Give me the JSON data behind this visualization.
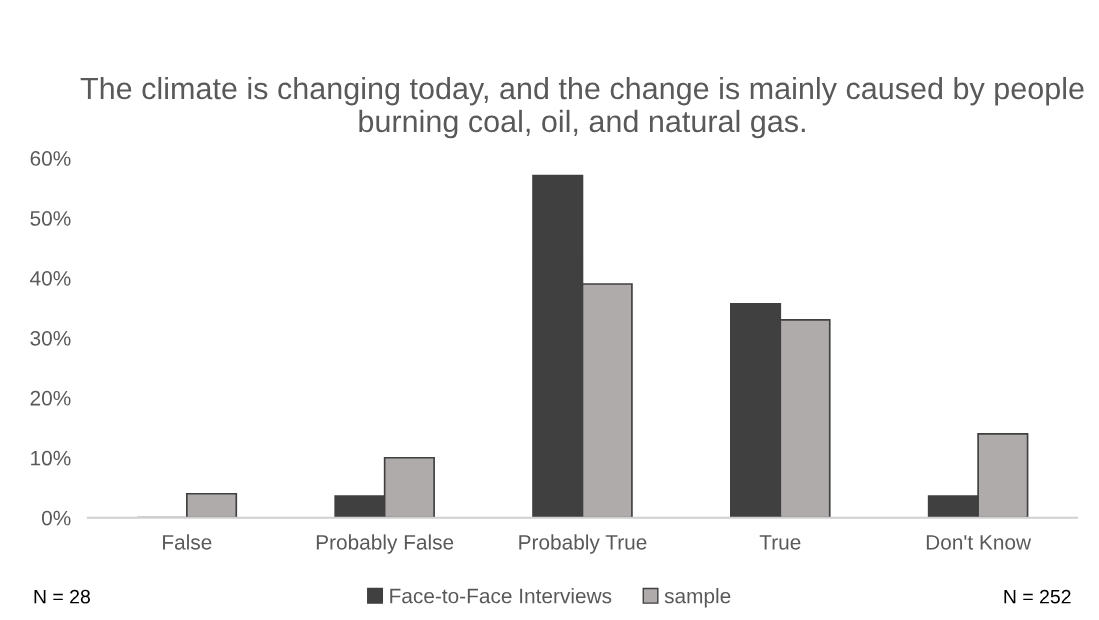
{
  "chart_data": {
    "type": "bar",
    "title": "The climate is changing today, and the change is mainly caused by people burning coal, oil, and natural gas.",
    "categories": [
      "False",
      "Probably False",
      "Probably True",
      "True",
      "Don't Know"
    ],
    "series": [
      {
        "name": "Face-to-Face Interviews",
        "color": "#404040",
        "values": [
          0,
          3.6,
          57.1,
          35.7,
          3.6
        ]
      },
      {
        "name": "sample",
        "color": "#afabab",
        "values": [
          4,
          10,
          39,
          33,
          14
        ]
      }
    ],
    "ylim": [
      0,
      60
    ],
    "yticks": [
      {
        "value": 0,
        "label": "0%"
      },
      {
        "value": 10,
        "label": "10%"
      },
      {
        "value": 20,
        "label": "20%"
      },
      {
        "value": 30,
        "label": "30%"
      },
      {
        "value": 40,
        "label": "40%"
      },
      {
        "value": 50,
        "label": "50%"
      },
      {
        "value": 60,
        "label": "60%"
      }
    ],
    "grid": false,
    "legend": "bottom",
    "annotations": [
      "N = 28",
      "N = 252"
    ]
  }
}
